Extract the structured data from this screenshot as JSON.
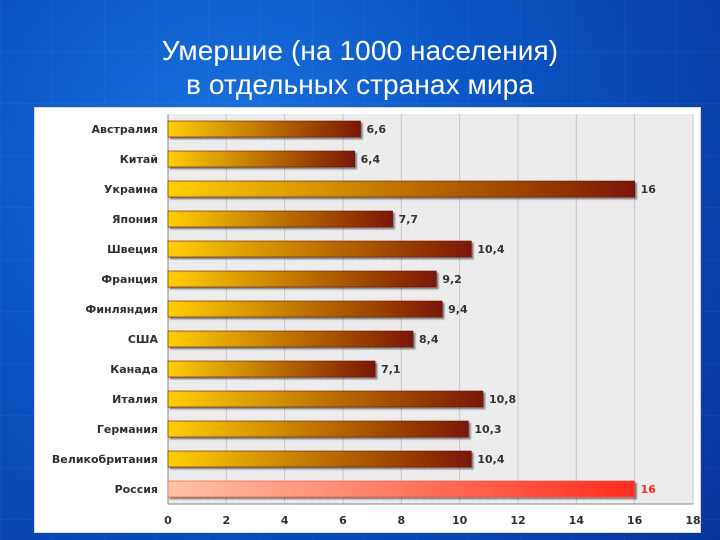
{
  "title": {
    "line1": "Умершие (на 1000 населения)",
    "line2": "в отдельных странах мира"
  },
  "colors": {
    "background": "#0b56c5",
    "bar_start": "#ffcf00",
    "bar_end": "#7c1607",
    "highlight_start": "#ffc3a5",
    "highlight_end": "#ff2d1f",
    "highlight_label": "#ff2a18",
    "plot_background": "#ececec"
  },
  "chart_data": {
    "type": "bar",
    "orientation": "horizontal",
    "categories": [
      "Австралия",
      "Китай",
      "Украина",
      "Япония",
      "Швеция",
      "Франция",
      "Финляндия",
      "США",
      "Канада",
      "Италия",
      "Германия",
      "Великобритания",
      "Россия"
    ],
    "values": [
      6.6,
      6.4,
      16,
      7.7,
      10.4,
      9.2,
      9.4,
      8.4,
      7.1,
      10.8,
      10.3,
      10.4,
      16
    ],
    "data_labels": [
      "6,6",
      "6,4",
      "16",
      "7,7",
      "10,4",
      "9,2",
      "9,4",
      "8,4",
      "7,1",
      "10,8",
      "10,3",
      "10,4",
      "16"
    ],
    "x_ticks": [
      0,
      2,
      4,
      6,
      8,
      10,
      12,
      14,
      16,
      18
    ],
    "xlim": [
      0,
      18
    ],
    "grid": "vertical",
    "highlight_category": "Россия"
  }
}
